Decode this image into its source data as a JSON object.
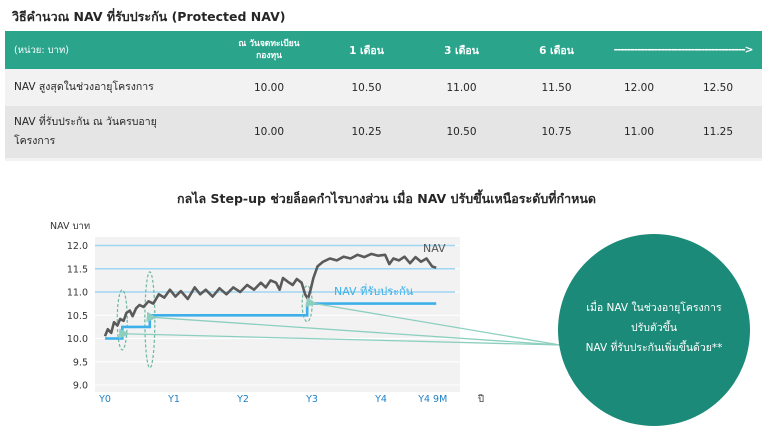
{
  "table": {
    "title": "วิธีคำนวณ NAV ที่รับประกัน (Protected NAV)",
    "header": {
      "unit": "(หน่วย: บาท)",
      "inception_line1": "ณ วันจดทะเบียน",
      "inception_line2": "กองทุน",
      "m1": "1 เดือน",
      "m3": "3 เดือน",
      "m6": "6 เดือน",
      "arrow": "--------------------------------------->"
    },
    "rows": [
      {
        "label": "NAV สูงสุดในช่วงอายุโครงการ",
        "values": [
          "10.00",
          "10.50",
          "11.00",
          "11.50",
          "12.00",
          "12.50"
        ]
      },
      {
        "label_line1": "NAV ที่รับประกัน ณ วันครบอายุ",
        "label_line2": "โครงการ",
        "values": [
          "10.00",
          "10.25",
          "10.50",
          "10.75",
          "11.00",
          "11.25"
        ]
      }
    ]
  },
  "chart_data": {
    "type": "line",
    "title": "กลไล Step-up ช่วยล็อคกำไรบางส่วน เมื่อ NAV ปรับขึ้นเหนือระดับที่กำหนด",
    "ylabel": "NAV บาท",
    "xlabel": "ปี",
    "ylim": [
      9.0,
      12.0
    ],
    "yticks": [
      "12.0",
      "11.5",
      "11.0",
      "10.5",
      "10.0",
      "9.5",
      "9.0"
    ],
    "x_labels": [
      "Y0",
      "Y1",
      "Y2",
      "Y3",
      "Y4",
      "Y4 9M"
    ],
    "x_positions": [
      0,
      1,
      2,
      3,
      4,
      4.75
    ],
    "series": [
      {
        "name": "NAV",
        "color": "#5a5a5a",
        "points": [
          [
            0,
            10.05
          ],
          [
            0.04,
            10.2
          ],
          [
            0.09,
            10.12
          ],
          [
            0.13,
            10.35
          ],
          [
            0.18,
            10.28
          ],
          [
            0.22,
            10.42
          ],
          [
            0.27,
            10.38
          ],
          [
            0.31,
            10.55
          ],
          [
            0.36,
            10.6
          ],
          [
            0.4,
            10.48
          ],
          [
            0.45,
            10.65
          ],
          [
            0.5,
            10.72
          ],
          [
            0.56,
            10.68
          ],
          [
            0.63,
            10.8
          ],
          [
            0.7,
            10.75
          ],
          [
            0.78,
            10.95
          ],
          [
            0.86,
            10.88
          ],
          [
            0.94,
            11.05
          ],
          [
            1.02,
            10.9
          ],
          [
            1.1,
            11.02
          ],
          [
            1.2,
            10.85
          ],
          [
            1.3,
            11.1
          ],
          [
            1.38,
            10.95
          ],
          [
            1.46,
            11.05
          ],
          [
            1.56,
            10.9
          ],
          [
            1.66,
            11.08
          ],
          [
            1.76,
            10.95
          ],
          [
            1.86,
            11.1
          ],
          [
            1.96,
            11.0
          ],
          [
            2.06,
            11.15
          ],
          [
            2.16,
            11.05
          ],
          [
            2.26,
            11.2
          ],
          [
            2.33,
            11.1
          ],
          [
            2.4,
            11.25
          ],
          [
            2.48,
            11.2
          ],
          [
            2.53,
            11.05
          ],
          [
            2.58,
            11.3
          ],
          [
            2.65,
            11.22
          ],
          [
            2.72,
            11.15
          ],
          [
            2.78,
            11.28
          ],
          [
            2.85,
            11.2
          ],
          [
            2.9,
            10.95
          ],
          [
            2.94,
            10.85
          ],
          [
            2.98,
            11.05
          ],
          [
            3.02,
            11.3
          ],
          [
            3.08,
            11.55
          ],
          [
            3.16,
            11.65
          ],
          [
            3.26,
            11.72
          ],
          [
            3.36,
            11.68
          ],
          [
            3.46,
            11.76
          ],
          [
            3.56,
            11.72
          ],
          [
            3.66,
            11.8
          ],
          [
            3.76,
            11.75
          ],
          [
            3.86,
            11.82
          ],
          [
            3.96,
            11.78
          ],
          [
            4.06,
            11.8
          ],
          [
            4.12,
            11.6
          ],
          [
            4.18,
            11.72
          ],
          [
            4.26,
            11.68
          ],
          [
            4.34,
            11.76
          ],
          [
            4.42,
            11.62
          ],
          [
            4.5,
            11.75
          ],
          [
            4.58,
            11.65
          ],
          [
            4.66,
            11.72
          ],
          [
            4.74,
            11.55
          ],
          [
            4.8,
            11.52
          ]
        ]
      },
      {
        "name": "NAV ที่รับประกัน",
        "color": "#3db0ea",
        "points": [
          [
            0,
            10.0
          ],
          [
            0.25,
            10.0
          ],
          [
            0.25,
            10.25
          ],
          [
            0.65,
            10.25
          ],
          [
            0.65,
            10.5
          ],
          [
            2.93,
            10.5
          ],
          [
            2.93,
            10.75
          ],
          [
            4.8,
            10.75
          ]
        ]
      }
    ],
    "max_levels": [
      11.0,
      11.5,
      12.0
    ],
    "annotation": {
      "line1": "เมื่อ NAV ในช่วงอายุโครงการ",
      "line2": "ปรับตัวขึ้น",
      "line3": "NAV ที่รับประกันเพิ่มขึ้นด้วย**"
    }
  }
}
